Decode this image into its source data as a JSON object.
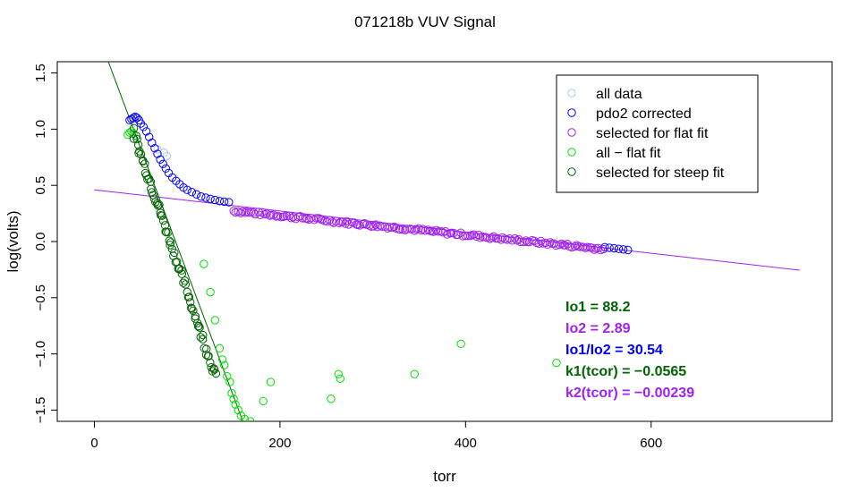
{
  "chart_data": {
    "type": "scatter",
    "title": "071218b   VUV Signal",
    "xlabel": "torr",
    "ylabel": "log(volts)",
    "xlim": [
      -40,
      795
    ],
    "ylim": [
      -1.6,
      1.6
    ],
    "xticks": [
      0,
      200,
      400,
      600
    ],
    "yticks": [
      -1.5,
      -1.0,
      -0.5,
      0.0,
      0.5,
      1.0,
      1.5
    ],
    "xtick_labels": [
      "0",
      "200",
      "400",
      "600"
    ],
    "ytick_labels": [
      "−1.5",
      "−1.0",
      "−0.5",
      "0.0",
      "0.5",
      "1.0",
      "1.5"
    ],
    "colors": {
      "all_data": "#a8c8e8",
      "pdo2": "#0000ff",
      "flat": "#a020f0",
      "all_minus_flat": "#00e000",
      "steep": "#006400",
      "steep_line": "#006400",
      "flat_line": "#a020f0"
    },
    "series": [
      {
        "name": "all data",
        "color_key": "all_data",
        "points": [
          [
            75,
            0.79
          ],
          [
            78,
            0.76
          ],
          [
            68,
            0.82
          ]
        ]
      },
      {
        "name": "pdo2 corrected",
        "color_key": "pdo2",
        "points": [
          [
            38,
            1.08
          ],
          [
            40,
            1.09
          ],
          [
            42,
            1.1
          ],
          [
            44,
            1.11
          ],
          [
            46,
            1.1
          ],
          [
            48,
            1.08
          ],
          [
            50,
            1.05
          ],
          [
            53,
            1.02
          ],
          [
            56,
            0.98
          ],
          [
            59,
            0.93
          ],
          [
            62,
            0.88
          ],
          [
            65,
            0.83
          ],
          [
            68,
            0.78
          ],
          [
            71,
            0.73
          ],
          [
            74,
            0.69
          ],
          [
            77,
            0.65
          ],
          [
            80,
            0.61
          ],
          [
            84,
            0.57
          ],
          [
            88,
            0.54
          ],
          [
            92,
            0.51
          ],
          [
            96,
            0.48
          ],
          [
            100,
            0.46
          ],
          [
            105,
            0.44
          ],
          [
            110,
            0.42
          ],
          [
            115,
            0.4
          ],
          [
            120,
            0.39
          ],
          [
            125,
            0.38
          ],
          [
            130,
            0.37
          ],
          [
            135,
            0.36
          ],
          [
            140,
            0.355
          ],
          [
            145,
            0.35
          ],
          [
            550,
            -0.05
          ],
          [
            555,
            -0.055
          ],
          [
            560,
            -0.06
          ],
          [
            565,
            -0.065
          ],
          [
            570,
            -0.07
          ],
          [
            575,
            -0.075
          ]
        ]
      },
      {
        "name": "selected for flat fit",
        "color_key": "flat",
        "x_range": [
          150,
          550
        ],
        "fit": {
          "a": 0.4,
          "b": -0.00085
        }
      },
      {
        "name": "all − flat fit",
        "color_key": "all_minus_flat",
        "points": [
          [
            36,
            0.95
          ],
          [
            38,
            0.97
          ],
          [
            40,
            0.98
          ],
          [
            42,
            0.96
          ],
          [
            118,
            -0.2
          ],
          [
            125,
            -0.45
          ],
          [
            130,
            -0.7
          ],
          [
            135,
            -0.95
          ],
          [
            138,
            -1.05
          ],
          [
            140,
            -1.1
          ],
          [
            143,
            -1.2
          ],
          [
            146,
            -1.25
          ],
          [
            148,
            -1.35
          ],
          [
            150,
            -1.4
          ],
          [
            152,
            -1.45
          ],
          [
            155,
            -1.5
          ],
          [
            158,
            -1.55
          ],
          [
            162,
            -1.58
          ],
          [
            168,
            -1.6
          ],
          [
            182,
            -1.42
          ],
          [
            190,
            -1.25
          ],
          [
            255,
            -1.4
          ],
          [
            263,
            -1.18
          ],
          [
            265,
            -1.22
          ],
          [
            345,
            -1.18
          ],
          [
            395,
            -0.91
          ],
          [
            498,
            -1.08
          ]
        ]
      },
      {
        "name": "selected for steep fit",
        "color_key": "steep",
        "x_range": [
          42,
          132
        ],
        "fit": {
          "a": 2.0,
          "b": -0.0245
        }
      }
    ],
    "fit_lines": [
      {
        "name": "steep fit",
        "color_key": "steep_line",
        "x1": 15,
        "y1": 1.6,
        "x2": 160,
        "y2": -1.6
      },
      {
        "name": "flat fit",
        "color_key": "flat_line",
        "x1": 0,
        "y1": 0.46,
        "x2": 760,
        "y2": -0.255
      }
    ],
    "legend": {
      "position": "top-right",
      "entries": [
        {
          "label": "all data",
          "color_key": "all_data"
        },
        {
          "label": "pdo2 corrected",
          "color_key": "pdo2"
        },
        {
          "label": "selected for flat fit",
          "color_key": "flat"
        },
        {
          "label": "all − flat fit",
          "color_key": "all_minus_flat"
        },
        {
          "label": "selected for steep fit",
          "color_key": "steep"
        }
      ]
    },
    "annotations": [
      {
        "text": "Io1 =  88.2",
        "color": "#006400"
      },
      {
        "text": "Io2 =  2.89",
        "color": "#a020f0"
      },
      {
        "text": "Io1/Io2 =  30.54",
        "color": "#0000ff"
      },
      {
        "text": "k1(tcor) =  −0.0565",
        "color": "#006400"
      },
      {
        "text": "k2(tcor) =  −0.00239",
        "color": "#a020f0"
      }
    ]
  }
}
